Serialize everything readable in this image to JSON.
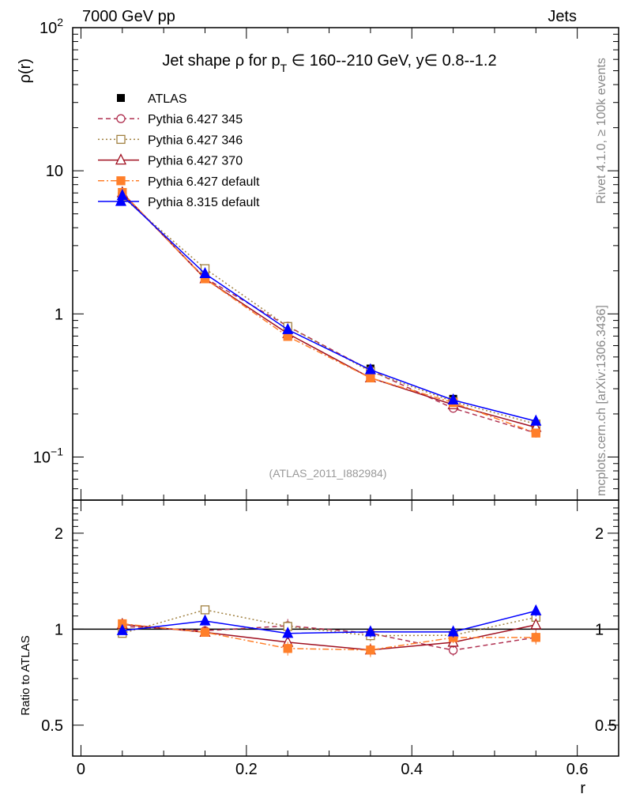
{
  "header": {
    "left": "7000 GeV pp",
    "right": "Jets"
  },
  "side_labels": {
    "rivet": "Rivet 4.1.0, ≥ 100k events",
    "mcplots": "mcplots.cern.ch [arXiv:1306.3436]"
  },
  "watermark": "(ATLAS_2011_I882984)",
  "chart_data": {
    "type": "line",
    "title": {
      "pre": "Jet shape ρ for p",
      "sub": "T",
      "post": " ∈ 160--210 GeV, y∈ 0.8--1.2"
    },
    "xlabel": "r",
    "ylabel": "ρ(r)",
    "ratio_ylabel": "Ratio to ATLAS",
    "xlim": [
      -0.01,
      0.65
    ],
    "ylim": [
      0.05,
      100
    ],
    "yscale": "log",
    "ratio_ylim": [
      0.4,
      2.54
    ],
    "legend_position": "top-left",
    "x_ticks": [
      {
        "v": 0,
        "label": "0"
      },
      {
        "v": 0.2,
        "label": "0.2"
      },
      {
        "v": 0.4,
        "label": "0.4"
      },
      {
        "v": 0.6,
        "label": "0.6"
      }
    ],
    "y_ticks": [
      {
        "v": 100,
        "base": "10",
        "exp": "2"
      },
      {
        "v": 10,
        "base": "10",
        "exp": ""
      },
      {
        "v": 1,
        "base": "1",
        "exp": ""
      },
      {
        "v": 0.1,
        "base": "10",
        "exp": "−1"
      }
    ],
    "ratio_ticks": [
      {
        "v": 2,
        "label": "2"
      },
      {
        "v": 1,
        "label": "1"
      },
      {
        "v": 0.5,
        "label": "0.5"
      }
    ],
    "x": [
      0.05,
      0.15,
      0.25,
      0.35,
      0.45,
      0.55
    ],
    "reference": {
      "name": "ATLAS",
      "color": "#000000",
      "values": [
        6.78,
        1.8,
        0.8,
        0.415,
        0.255,
        0.156
      ],
      "errors": [
        0.15,
        0.05,
        0.02,
        0.012,
        0.008,
        0.006
      ]
    },
    "series": [
      {
        "name": "Pythia 6.427 345",
        "color": "#b03050",
        "dash": "6,4",
        "marker": "circle-open",
        "values": [
          6.92,
          1.78,
          0.82,
          0.403,
          0.219,
          0.147
        ],
        "rel_err": [
          0.02,
          0.03,
          0.05,
          0.04,
          0.04,
          0.04
        ]
      },
      {
        "name": "Pythia 6.427 346",
        "color": "#a08040",
        "dash": "2,3",
        "marker": "square-open",
        "values": [
          6.58,
          2.07,
          0.816,
          0.396,
          0.244,
          0.17
        ],
        "rel_err": [
          0.02,
          0.03,
          0.04,
          0.04,
          0.04,
          0.04
        ]
      },
      {
        "name": "Pythia 6.427 370",
        "color": "#a01020",
        "dash": "",
        "marker": "triangle-open",
        "values": [
          7.02,
          1.76,
          0.728,
          0.357,
          0.232,
          0.161
        ],
        "rel_err": [
          0.02,
          0.03,
          0.04,
          0.04,
          0.04,
          0.04
        ]
      },
      {
        "name": "Pythia 6.427 default",
        "color": "#ff7f2a",
        "dash": "8,3,2,3",
        "marker": "square-filled",
        "values": [
          7.05,
          1.76,
          0.696,
          0.357,
          0.24,
          0.147
        ],
        "rel_err": [
          0.02,
          0.03,
          0.05,
          0.05,
          0.04,
          0.05
        ]
      },
      {
        "name": "Pythia 8.315 default",
        "color": "#0000ff",
        "dash": "",
        "marker": "triangle-filled",
        "values": [
          6.71,
          1.91,
          0.776,
          0.407,
          0.25,
          0.178
        ],
        "rel_err": [
          0.02,
          0.03,
          0.04,
          0.04,
          0.04,
          0.04
        ]
      }
    ]
  }
}
